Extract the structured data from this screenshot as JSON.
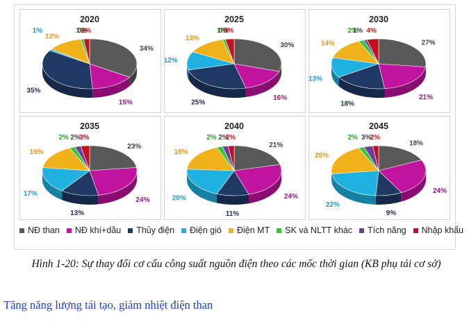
{
  "chart_data": [
    {
      "type": "pie",
      "title": "2020",
      "categories": [
        "NĐ than",
        "NĐ khí+dầu",
        "Thủy điện",
        "Điện gió",
        "Điện MT",
        "SK và NLTT khác",
        "Tích năng",
        "Nhập khẩu"
      ],
      "values": [
        34,
        15,
        35,
        1,
        12,
        1,
        0,
        2
      ],
      "labels": [
        "34%",
        "15%",
        "35%",
        "1%",
        "12%",
        "1%",
        "0%",
        "2%"
      ]
    },
    {
      "type": "pie",
      "title": "2025",
      "categories": [
        "NĐ than",
        "NĐ khí+dầu",
        "Thủy điện",
        "Điện gió",
        "Điện MT",
        "SK và NLTT khác",
        "Tích năng",
        "Nhập khẩu"
      ],
      "values": [
        30,
        16,
        25,
        12,
        13,
        1,
        0,
        3
      ],
      "labels": [
        "30%",
        "16%",
        "25%",
        "12%",
        "13%",
        "1%",
        "0%",
        "3%"
      ]
    },
    {
      "type": "pie",
      "title": "2030",
      "categories": [
        "NĐ than",
        "NĐ khí+dầu",
        "Thủy điện",
        "Điện gió",
        "Điện MT",
        "SK và NLTT khác",
        "Tích năng",
        "Nhập khẩu"
      ],
      "values": [
        27,
        21,
        18,
        13,
        14,
        2,
        1,
        4
      ],
      "labels": [
        "27%",
        "21%",
        "18%",
        "13%",
        "14%",
        "2%",
        "1%",
        "4%"
      ]
    },
    {
      "type": "pie",
      "title": "2035",
      "categories": [
        "NĐ than",
        "NĐ khí+dầu",
        "Thủy điện",
        "Điện gió",
        "Điện MT",
        "SK và NLTT khác",
        "Tích năng",
        "Nhập khẩu"
      ],
      "values": [
        23,
        24,
        13,
        17,
        16,
        2,
        2,
        3
      ],
      "labels": [
        "23%",
        "24%",
        "13%",
        "17%",
        "16%",
        "2%",
        "2%",
        "3%"
      ]
    },
    {
      "type": "pie",
      "title": "2040",
      "categories": [
        "NĐ than",
        "NĐ khí+dầu",
        "Thủy điện",
        "Điện gió",
        "Điện MT",
        "SK và NLTT khác",
        "Tích năng",
        "Nhập khẩu"
      ],
      "values": [
        21,
        24,
        11,
        20,
        18,
        2,
        2,
        2
      ],
      "labels": [
        "21%",
        "24%",
        "11%",
        "20%",
        "18%",
        "2%",
        "2%",
        "2%"
      ]
    },
    {
      "type": "pie",
      "title": "2045",
      "categories": [
        "NĐ than",
        "NĐ khí+dầu",
        "Thủy điện",
        "Điện gió",
        "Điện MT",
        "SK và NLTT khác",
        "Tích năng",
        "Nhập khẩu"
      ],
      "values": [
        18,
        24,
        9,
        22,
        20,
        2,
        3,
        2
      ],
      "labels": [
        "18%",
        "24%",
        "9%",
        "22%",
        "20%",
        "2%",
        "3%",
        "2%"
      ]
    }
  ],
  "legend": {
    "items": [
      {
        "label": "NĐ than",
        "color": "#595959"
      },
      {
        "label": "NĐ khí+dầu",
        "color": "#c0139e"
      },
      {
        "label": "Thủy điện",
        "color": "#1f3864"
      },
      {
        "label": "Điện gió",
        "color": "#1fb2e0"
      },
      {
        "label": "Điện MT",
        "color": "#f0b21a"
      },
      {
        "label": "SK và NLTT khác",
        "color": "#3cc43c"
      },
      {
        "label": "Tích năng",
        "color": "#6a3fa0"
      },
      {
        "label": "Nhập khẩu",
        "color": "#c0121c"
      }
    ]
  },
  "label_colors": [
    "#404040",
    "#8b1a7a",
    "#1f2a44",
    "#1a9bc7",
    "#d99a10",
    "#2aa52a",
    "#404040",
    "#c0121c"
  ],
  "caption": "Hình 1-20: Sự thay đổi cơ cấu công suất nguồn điện theo các mốc thời gian (KB phụ tải cơ sở)",
  "footer": "Tăng năng lượng tái tạo, giảm nhiệt điện than"
}
